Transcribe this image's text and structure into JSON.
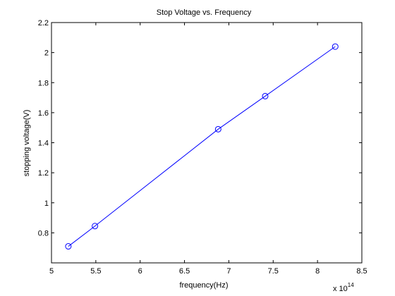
{
  "chart_data": {
    "type": "line",
    "title": "Stop Voltage vs. Frequency",
    "xlabel": "frequency(Hz)",
    "ylabel": "stopping voltage(V)",
    "x_multiplier_label": "x 10",
    "x_multiplier_exponent": "14",
    "xlim": [
      5,
      8.5
    ],
    "ylim": [
      0.6,
      2.2
    ],
    "x_ticks": [
      5,
      5.5,
      6,
      6.5,
      7,
      7.5,
      8,
      8.5
    ],
    "x_tick_labels": [
      "5",
      "5.5",
      "6",
      "6.5",
      "7",
      "7.5",
      "8",
      "8.5"
    ],
    "y_ticks": [
      0.8,
      1,
      1.2,
      1.4,
      1.6,
      1.8,
      2,
      2.2
    ],
    "y_tick_labels": [
      "0.8",
      "1",
      "1.2",
      "1.4",
      "1.6",
      "1.8",
      "2",
      "2.2"
    ],
    "grid": false,
    "series": [
      {
        "marker": "circle",
        "color": "#0000ff",
        "points": [
          {
            "x": 5.19,
            "y": 0.71
          },
          {
            "x": 5.49,
            "y": 0.845
          },
          {
            "x": 6.88,
            "y": 1.49
          },
          {
            "x": 7.41,
            "y": 1.71
          },
          {
            "x": 8.2,
            "y": 2.04
          }
        ]
      }
    ]
  }
}
